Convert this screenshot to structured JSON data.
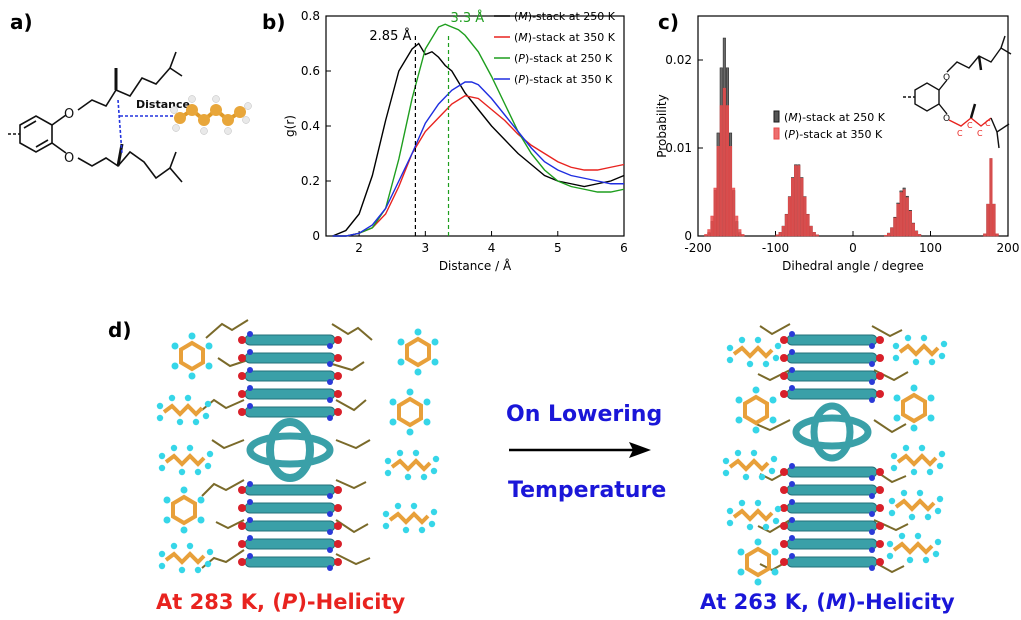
{
  "panel_labels": {
    "a": "a)",
    "b": "b)",
    "c": "c)",
    "d": "d)"
  },
  "panel_a": {
    "distance_label": "Distance"
  },
  "chart_data": [
    {
      "type": "line",
      "xlabel": "Distance / Å",
      "ylabel": "g(r)",
      "xlim": [
        1.5,
        6
      ],
      "ylim": [
        0,
        0.8
      ],
      "xticks": [
        2,
        3,
        4,
        5,
        6
      ],
      "yticks": [
        0,
        0.2,
        0.4,
        0.6,
        0.8
      ],
      "legend_position": "top-right",
      "annotations": [
        {
          "text": "2.85 Å",
          "x": 2.85,
          "color": "#000000"
        },
        {
          "text": "3.3 Å",
          "x": 3.35,
          "color": "#1e9e1e"
        }
      ],
      "series": [
        {
          "name": "(M)-stack at 250 K",
          "label_prefix": "(",
          "label_italic": "M",
          "label_suffix": ")-stack at 250 K",
          "color": "#000000",
          "x": [
            1.6,
            1.8,
            2.0,
            2.2,
            2.4,
            2.6,
            2.8,
            2.9,
            3.0,
            3.1,
            3.2,
            3.3,
            3.4,
            3.5,
            3.6,
            3.8,
            4.0,
            4.2,
            4.4,
            4.6,
            4.8,
            5.0,
            5.2,
            5.4,
            5.6,
            5.8,
            6.0
          ],
          "y": [
            0.0,
            0.02,
            0.08,
            0.22,
            0.42,
            0.6,
            0.68,
            0.7,
            0.66,
            0.67,
            0.65,
            0.62,
            0.6,
            0.56,
            0.52,
            0.46,
            0.4,
            0.35,
            0.3,
            0.26,
            0.22,
            0.2,
            0.19,
            0.18,
            0.19,
            0.2,
            0.22
          ]
        },
        {
          "name": "(M)-stack at 350 K",
          "label_prefix": "(",
          "label_italic": "M",
          "label_suffix": ")-stack at 350 K",
          "color": "#e8231f",
          "x": [
            1.6,
            1.8,
            2.0,
            2.2,
            2.4,
            2.6,
            2.8,
            3.0,
            3.2,
            3.4,
            3.6,
            3.8,
            4.0,
            4.2,
            4.4,
            4.6,
            4.8,
            5.0,
            5.2,
            5.4,
            5.6,
            5.8,
            6.0
          ],
          "y": [
            0.0,
            0.0,
            0.01,
            0.03,
            0.08,
            0.18,
            0.3,
            0.38,
            0.43,
            0.48,
            0.51,
            0.5,
            0.46,
            0.42,
            0.37,
            0.33,
            0.3,
            0.27,
            0.25,
            0.24,
            0.24,
            0.25,
            0.26
          ]
        },
        {
          "name": "(P)-stack at 250 K",
          "label_prefix": "(",
          "label_italic": "P",
          "label_suffix": ")-stack at 250 K",
          "color": "#1e9e1e",
          "x": [
            1.6,
            1.8,
            2.0,
            2.2,
            2.4,
            2.6,
            2.8,
            3.0,
            3.2,
            3.3,
            3.4,
            3.5,
            3.6,
            3.8,
            4.0,
            4.2,
            4.4,
            4.6,
            4.8,
            5.0,
            5.2,
            5.4,
            5.6,
            5.8,
            6.0
          ],
          "y": [
            0.0,
            0.0,
            0.01,
            0.03,
            0.1,
            0.28,
            0.5,
            0.68,
            0.76,
            0.77,
            0.76,
            0.75,
            0.73,
            0.67,
            0.58,
            0.48,
            0.38,
            0.3,
            0.24,
            0.2,
            0.18,
            0.17,
            0.16,
            0.16,
            0.17
          ]
        },
        {
          "name": "(P)-stack at 350 K",
          "label_prefix": "(",
          "label_italic": "P",
          "label_suffix": ")-stack at 350 K",
          "color": "#1f2ee0",
          "x": [
            1.6,
            1.8,
            2.0,
            2.2,
            2.4,
            2.6,
            2.8,
            3.0,
            3.2,
            3.4,
            3.6,
            3.7,
            3.8,
            4.0,
            4.2,
            4.4,
            4.6,
            4.8,
            5.0,
            5.2,
            5.4,
            5.6,
            5.8,
            6.0
          ],
          "y": [
            0.0,
            0.0,
            0.01,
            0.04,
            0.1,
            0.2,
            0.3,
            0.41,
            0.48,
            0.53,
            0.56,
            0.56,
            0.55,
            0.5,
            0.44,
            0.38,
            0.32,
            0.27,
            0.24,
            0.22,
            0.21,
            0.2,
            0.19,
            0.19
          ]
        }
      ]
    },
    {
      "type": "bar",
      "xlabel": "Dihedral angle / degree",
      "ylabel": "Probability",
      "xlim": [
        -200,
        200
      ],
      "ylim": [
        0,
        0.025
      ],
      "xticks": [
        -200,
        -100,
        0,
        100,
        200
      ],
      "yticks": [
        0,
        0.01,
        0.02
      ],
      "legend_position": "center-right",
      "series": [
        {
          "name": "(M)-stack at 250 K",
          "label_prefix": "(",
          "label_italic": "M",
          "label_suffix": ")-stack at 250 K",
          "color": "#1a1a1a",
          "peaks": [
            {
              "center": -166,
              "height": 0.0225,
              "width": 7
            },
            {
              "center": -72,
              "height": 0.0083,
              "width": 9
            },
            {
              "center": 65,
              "height": 0.0055,
              "width": 8
            },
            {
              "center": 178,
              "height": 0.0088,
              "width": 3
            }
          ]
        },
        {
          "name": "(P)-stack at 350 K",
          "label_prefix": "(",
          "label_italic": "P",
          "label_suffix": ")-stack at 350 K",
          "color": "#e84a4a",
          "peaks": [
            {
              "center": -166,
              "height": 0.0168,
              "width": 8
            },
            {
              "center": -72,
              "height": 0.0082,
              "width": 9
            },
            {
              "center": 65,
              "height": 0.0053,
              "width": 8
            },
            {
              "center": 178,
              "height": 0.0088,
              "width": 3
            }
          ]
        }
      ]
    }
  ],
  "panel_d": {
    "arrow_top": "On Lowering",
    "arrow_bottom": "Temperature",
    "left_caption_prefix": "At 283 K, (",
    "left_caption_italic": "P",
    "left_caption_suffix": ")-Helicity",
    "right_caption_prefix": "At 263 K, (",
    "right_caption_italic": "M",
    "right_caption_suffix": ")-Helicity",
    "left_caption_color": "#e8231f",
    "right_caption_color": "#1a16d8"
  }
}
